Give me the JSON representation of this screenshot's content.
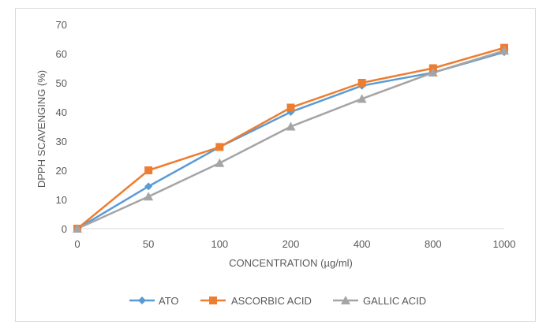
{
  "chart_data": {
    "type": "line",
    "title": "",
    "xlabel": "CONCENTRATION (µg/ml)",
    "ylabel": "DPPH SCAVENGING (%)",
    "categories": [
      "0",
      "50",
      "100",
      "200",
      "400",
      "800",
      "1000"
    ],
    "ylim": [
      0,
      70
    ],
    "yticks": [
      "0",
      "10",
      "20",
      "30",
      "40",
      "50",
      "60",
      "70"
    ],
    "grid": false,
    "legend_position": "bottom",
    "series": [
      {
        "name": "ATO",
        "color": "#5b9bd5",
        "marker": "diamond",
        "values": [
          0,
          14.5,
          28,
          40,
          49,
          53.5,
          60.5
        ]
      },
      {
        "name": "ASCORBIC ACID",
        "color": "#ed7d31",
        "marker": "square",
        "values": [
          0,
          20,
          28,
          41.5,
          50,
          55,
          62
        ]
      },
      {
        "name": "GALLIC ACID",
        "color": "#a5a5a5",
        "marker": "triangle",
        "values": [
          0,
          11,
          22.5,
          35,
          44.5,
          53.5,
          61
        ]
      }
    ]
  }
}
